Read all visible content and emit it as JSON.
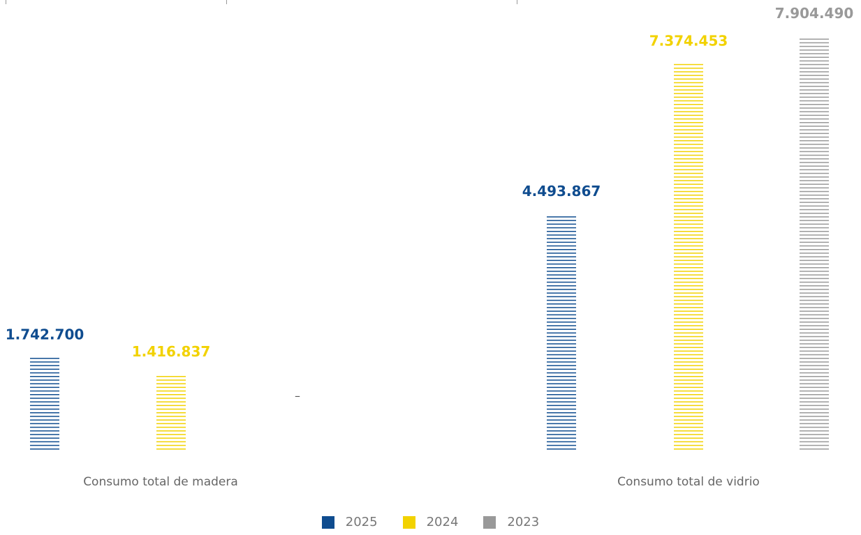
{
  "chart_data": {
    "type": "bar",
    "categories": [
      "Consumo total de madera",
      "Consumo total de vidrio"
    ],
    "series": [
      {
        "name": "2025",
        "color": "#0f4c8f",
        "values": [
          1742700,
          4493867
        ],
        "labels": [
          "1.742.700",
          "4.493.867"
        ]
      },
      {
        "name": "2024",
        "color": "#f2d200",
        "values": [
          1416837,
          7374453
        ],
        "labels": [
          "1.416.837",
          "7.374.453"
        ]
      },
      {
        "name": "2023",
        "color": "#999999",
        "values": [
          null,
          7904490
        ],
        "labels": [
          "–",
          "7.904.490"
        ]
      }
    ],
    "ylim": [
      0,
      7904490
    ],
    "grid": false,
    "legend_position": "bottom"
  }
}
